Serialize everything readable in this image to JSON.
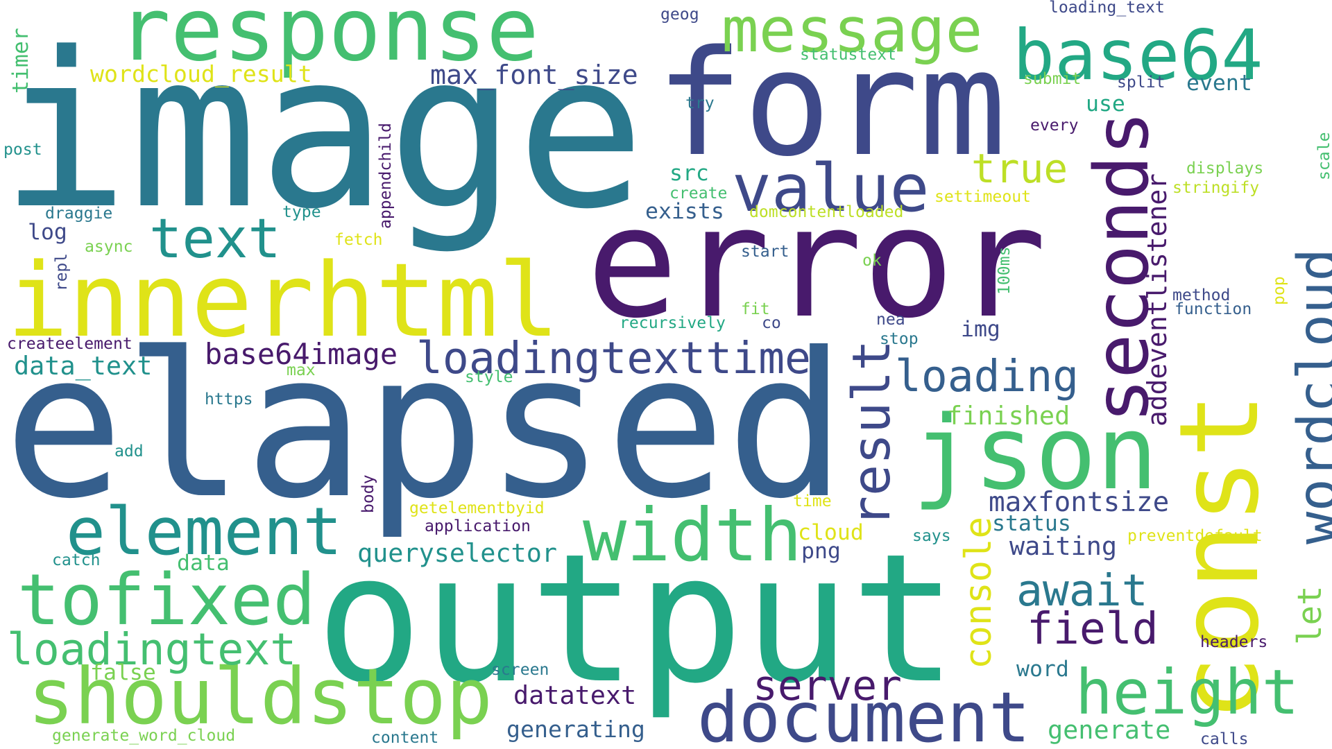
{
  "palette": {
    "purple": "#481a6c",
    "indigo": "#3e4989",
    "blue": "#355f8d",
    "steel": "#2a788e",
    "teal": "#21918c",
    "green": "#22a884",
    "lime": "#44bf70",
    "chartreuse": "#7ad151",
    "yellowgreen": "#bddf26",
    "yellow": "#dfe318"
  },
  "words": [
    {
      "text": "image",
      "color": "#2a788e"
    },
    {
      "text": "elapsed",
      "color": "#355f8d"
    },
    {
      "text": "output",
      "color": "#22a884"
    },
    {
      "text": "const",
      "color": "#dfe318"
    },
    {
      "text": "error",
      "color": "#481a6c"
    },
    {
      "text": "form",
      "color": "#3e4989"
    },
    {
      "text": "response",
      "color": "#44bf70"
    },
    {
      "text": "innerhtml",
      "color": "#dfe318"
    },
    {
      "text": "shouldstop",
      "color": "#7ad151"
    },
    {
      "text": "document",
      "color": "#3e4989"
    },
    {
      "text": "json",
      "color": "#44bf70"
    },
    {
      "text": "seconds",
      "color": "#481a6c"
    },
    {
      "text": "base64",
      "color": "#22a884"
    },
    {
      "text": "message",
      "color": "#7ad151"
    },
    {
      "text": "value",
      "color": "#3e4989"
    },
    {
      "text": "text",
      "color": "#21918c"
    },
    {
      "text": "tofixed",
      "color": "#44bf70"
    },
    {
      "text": "element",
      "color": "#21918c"
    },
    {
      "text": "width",
      "color": "#44bf70"
    },
    {
      "text": "height",
      "color": "#44bf70"
    },
    {
      "text": "wordcloud",
      "color": "#355f8d"
    },
    {
      "text": "result",
      "color": "#3e4989"
    },
    {
      "text": "loadingtext",
      "color": "#44bf70"
    },
    {
      "text": "loadingtexttime",
      "color": "#3e4989"
    },
    {
      "text": "loading",
      "color": "#355f8d"
    },
    {
      "text": "true",
      "color": "#bddf26"
    },
    {
      "text": "server",
      "color": "#481a6c"
    },
    {
      "text": "await",
      "color": "#2a788e"
    },
    {
      "text": "field",
      "color": "#481a6c"
    },
    {
      "text": "console",
      "color": "#dfe318"
    },
    {
      "text": "let",
      "color": "#7ad151"
    },
    {
      "text": "base64image",
      "color": "#481a6c"
    },
    {
      "text": "addeventlistener",
      "color": "#481a6c"
    },
    {
      "text": "max_font_size",
      "color": "#3e4989"
    },
    {
      "text": "wordcloud_result",
      "color": "#dfe318"
    },
    {
      "text": "queryselector",
      "color": "#21918c"
    },
    {
      "text": "maxfontsize",
      "color": "#3e4989"
    },
    {
      "text": "data_text",
      "color": "#21918c"
    },
    {
      "text": "finished",
      "color": "#7ad151"
    },
    {
      "text": "waiting",
      "color": "#3e4989"
    },
    {
      "text": "datatext",
      "color": "#481a6c"
    },
    {
      "text": "generating",
      "color": "#355f8d"
    },
    {
      "text": "generate",
      "color": "#44bf70"
    },
    {
      "text": "status",
      "color": "#2a788e"
    },
    {
      "text": "event",
      "color": "#2a788e"
    },
    {
      "text": "exists",
      "color": "#355f8d"
    },
    {
      "text": "word",
      "color": "#2a788e"
    },
    {
      "text": "use",
      "color": "#22a884"
    },
    {
      "text": "src",
      "color": "#22a884"
    },
    {
      "text": "img",
      "color": "#3e4989"
    },
    {
      "text": "png",
      "color": "#3e4989"
    },
    {
      "text": "cloud",
      "color": "#dfe318"
    },
    {
      "text": "data",
      "color": "#44bf70"
    },
    {
      "text": "false",
      "color": "#7ad151"
    },
    {
      "text": "log",
      "color": "#3e4989"
    },
    {
      "text": "timer",
      "color": "#44bf70"
    },
    {
      "text": "post",
      "color": "#21918c"
    },
    {
      "text": "draggie",
      "color": "#2a788e"
    },
    {
      "text": "async",
      "color": "#7ad151"
    },
    {
      "text": "repl",
      "color": "#3e4989"
    },
    {
      "text": "createelement",
      "color": "#481a6c"
    },
    {
      "text": "max",
      "color": "#7ad151"
    },
    {
      "text": "https",
      "color": "#2a788e"
    },
    {
      "text": "add",
      "color": "#21918c"
    },
    {
      "text": "catch",
      "color": "#21918c"
    },
    {
      "text": "generate_word_cloud",
      "color": "#7ad151"
    },
    {
      "text": "content",
      "color": "#2a788e"
    },
    {
      "text": "screen",
      "color": "#2a788e"
    },
    {
      "text": "getelementbyid",
      "color": "#dfe318"
    },
    {
      "text": "application",
      "color": "#481a6c"
    },
    {
      "text": "body",
      "color": "#481a6c"
    },
    {
      "text": "style",
      "color": "#44bf70"
    },
    {
      "text": "appendchild",
      "color": "#481a6c"
    },
    {
      "text": "type",
      "color": "#21918c"
    },
    {
      "text": "fetch",
      "color": "#dfe318"
    },
    {
      "text": "create",
      "color": "#44bf70"
    },
    {
      "text": "domcontentloaded",
      "color": "#bddf26"
    },
    {
      "text": "settimeout",
      "color": "#dfe318"
    },
    {
      "text": "stringify",
      "color": "#bddf26"
    },
    {
      "text": "displays",
      "color": "#7ad151"
    },
    {
      "text": "scale",
      "color": "#44bf70"
    },
    {
      "text": "every",
      "color": "#481a6c"
    },
    {
      "text": "split",
      "color": "#3e4989"
    },
    {
      "text": "submit",
      "color": "#7ad151"
    },
    {
      "text": "statustext",
      "color": "#44bf70"
    },
    {
      "text": "try",
      "color": "#2a788e"
    },
    {
      "text": "geog",
      "color": "#3e4989"
    },
    {
      "text": "loading_text",
      "color": "#3e4989"
    },
    {
      "text": "start",
      "color": "#355f8d"
    },
    {
      "text": "ok",
      "color": "#7ad151"
    },
    {
      "text": "100ms",
      "color": "#44bf70"
    },
    {
      "text": "pop",
      "color": "#dfe318"
    },
    {
      "text": "method",
      "color": "#3e4989"
    },
    {
      "text": "function",
      "color": "#355f8d"
    },
    {
      "text": "recursively",
      "color": "#22a884"
    },
    {
      "text": "fit",
      "color": "#7ad151"
    },
    {
      "text": "co",
      "color": "#3e4989"
    },
    {
      "text": "nea",
      "color": "#3e4989"
    },
    {
      "text": "stop",
      "color": "#2a788e"
    },
    {
      "text": "time",
      "color": "#dfe318"
    },
    {
      "text": "says",
      "color": "#21918c"
    },
    {
      "text": "preventdefault",
      "color": "#dfe318"
    },
    {
      "text": "headers",
      "color": "#481a6c"
    },
    {
      "text": "calls",
      "color": "#3e4989"
    }
  ]
}
